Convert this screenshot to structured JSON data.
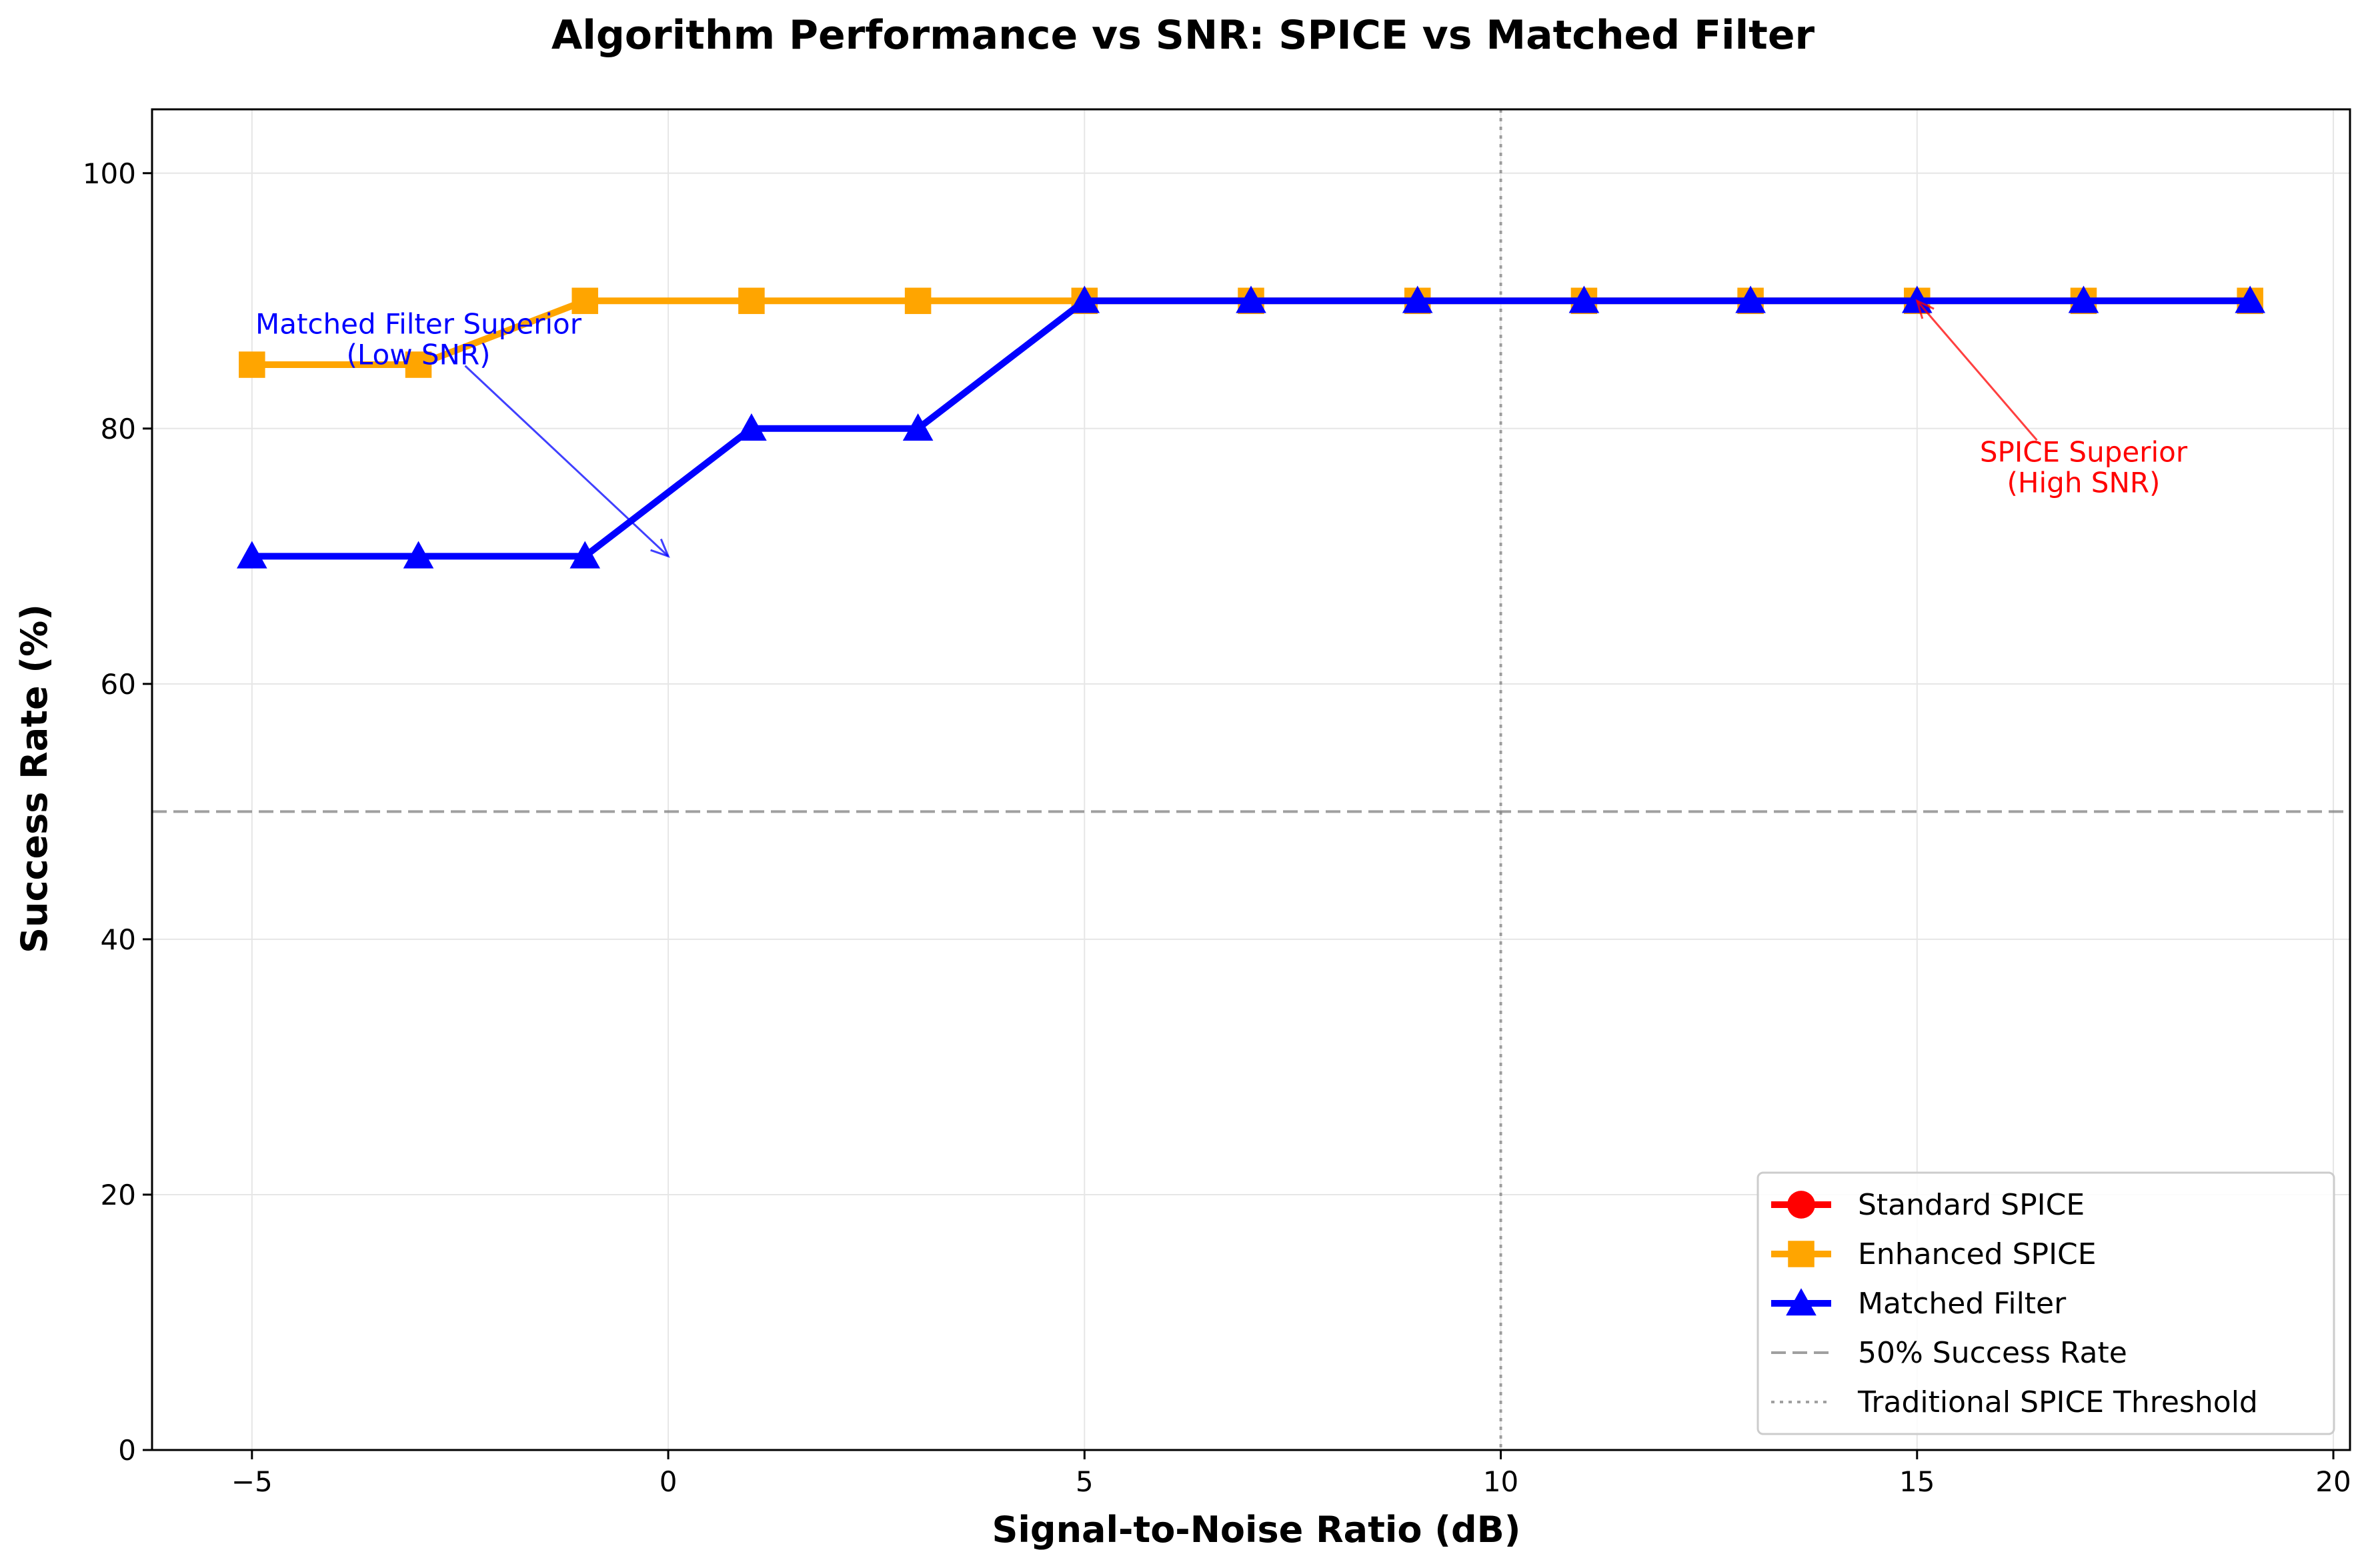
{
  "chart_data": {
    "type": "line",
    "title": "Algorithm Performance vs SNR: SPICE vs Matched Filter",
    "xlabel": "Signal-to-Noise Ratio (dB)",
    "ylabel": "Success Rate (%)",
    "xlim": [
      -6.2,
      20.2
    ],
    "ylim": [
      0,
      105
    ],
    "xticks": [
      -5,
      0,
      5,
      10,
      15,
      20
    ],
    "xtick_labels": [
      "−5",
      "0",
      "5",
      "10",
      "15",
      "20"
    ],
    "yticks": [
      0,
      20,
      40,
      60,
      80,
      100
    ],
    "ytick_labels": [
      "0",
      "20",
      "40",
      "60",
      "80",
      "100"
    ],
    "grid": true,
    "legend_position": "lower-right",
    "x": [
      -5,
      -3,
      -1,
      1,
      3,
      5,
      7,
      9,
      11,
      13,
      15,
      17,
      19
    ],
    "series": [
      {
        "name": "Standard SPICE",
        "color": "#ff0000",
        "marker": "circle",
        "values": [
          null,
          null,
          null,
          null,
          null,
          null,
          null,
          null,
          null,
          null,
          null,
          null,
          null
        ]
      },
      {
        "name": "Enhanced SPICE",
        "color": "#ffa500",
        "marker": "square",
        "values": [
          85,
          85,
          90,
          90,
          90,
          90,
          90,
          90,
          90,
          90,
          90,
          90,
          90
        ]
      },
      {
        "name": "Matched Filter",
        "color": "#0000ff",
        "marker": "triangle",
        "values": [
          70,
          70,
          70,
          80,
          80,
          90,
          90,
          90,
          90,
          90,
          90,
          90,
          90
        ]
      }
    ],
    "reference_lines": [
      {
        "name": "50% Success Rate",
        "orientation": "horizontal",
        "value": 50,
        "style": "dashed",
        "color": "#808080"
      },
      {
        "name": "Traditional SPICE Threshold",
        "orientation": "vertical",
        "value": 10,
        "style": "dotted",
        "color": "#808080"
      }
    ],
    "annotations": [
      {
        "lines": [
          "Matched Filter Superior",
          "(Low SNR)"
        ],
        "color": "#0000ff",
        "text_x": -3,
        "text_y": 87,
        "arrow_x": 0,
        "arrow_y": 70
      },
      {
        "lines": [
          "SPICE Superior",
          "(High SNR)"
        ],
        "color": "#ff0000",
        "text_x": 17,
        "text_y": 77,
        "arrow_x": 15,
        "arrow_y": 90
      }
    ]
  }
}
